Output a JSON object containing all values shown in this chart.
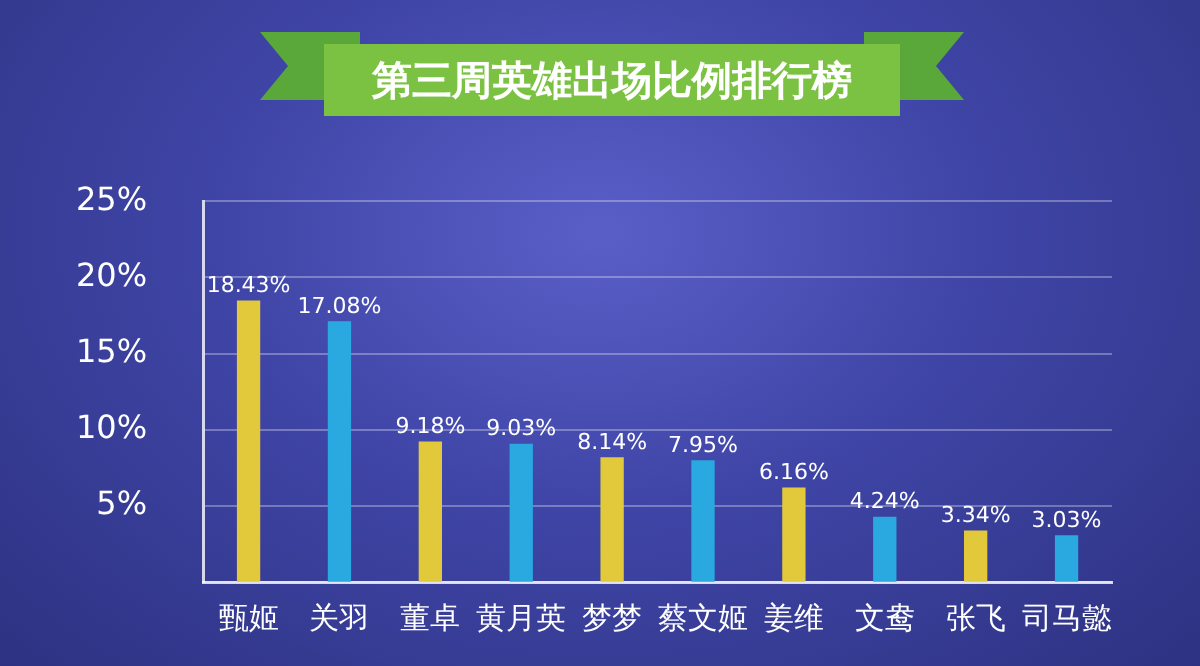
{
  "chart_data": {
    "type": "bar",
    "title": "第三周英雄出场比例排行榜",
    "categories": [
      "甄姬",
      "关羽",
      "董卓",
      "黄月英",
      "梦梦",
      "蔡文姬",
      "姜维",
      "文鸯",
      "张飞",
      "司马懿"
    ],
    "values": [
      18.43,
      17.08,
      9.18,
      9.03,
      8.14,
      7.95,
      6.16,
      4.24,
      3.34,
      3.03
    ],
    "colors": [
      "#e2c93c",
      "#2aa8e0",
      "#e2c93c",
      "#2aa8e0",
      "#e2c93c",
      "#2aa8e0",
      "#e2c93c",
      "#2aa8e0",
      "#e2c93c",
      "#2aa8e0"
    ],
    "value_labels": [
      "18.43%",
      "17.08%",
      "9.18%",
      "9.03%",
      "8.14%",
      "7.95%",
      "6.16%",
      "4.24%",
      "3.34%",
      "3.03%"
    ],
    "ylim": [
      0,
      25
    ],
    "yticks": [
      {
        "value": 0,
        "label": null
      },
      {
        "value": 5,
        "label": "5%"
      },
      {
        "value": 10,
        "label": "10%"
      },
      {
        "value": 15,
        "label": "15%"
      },
      {
        "value": 20,
        "label": "20%"
      },
      {
        "value": 25,
        "label": "25%"
      }
    ],
    "grid": "y",
    "legend": false
  }
}
